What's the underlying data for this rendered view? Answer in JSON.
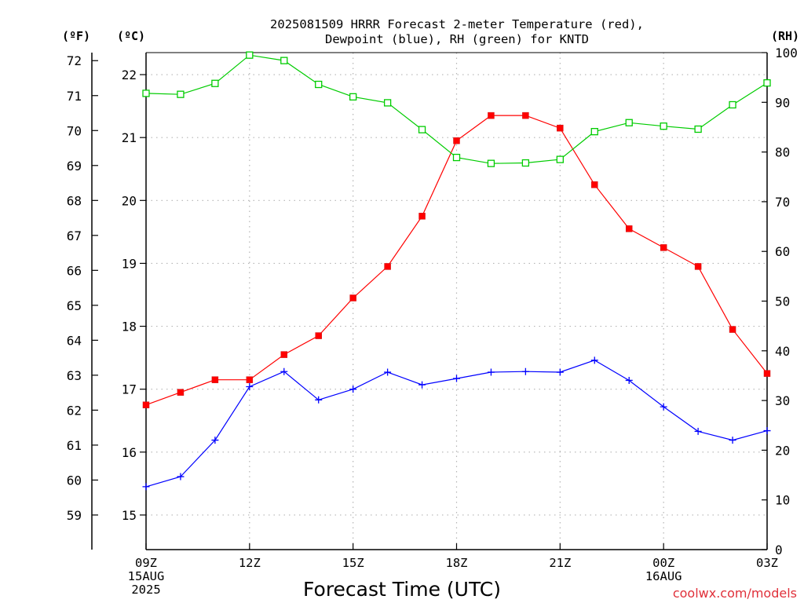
{
  "chart_data": {
    "type": "line",
    "title_line1": "2025081509 HRRR Forecast 2-meter Temperature (red),",
    "title_line2": "Dewpoint (blue), RH (green) for KNTD",
    "xlabel": "Forecast Time (UTC)",
    "credit": "coolwx.com/models",
    "unit_f": "(ºF)",
    "unit_c": "(ºC)",
    "unit_rh": "(RH)",
    "x_hours": [
      0,
      1,
      2,
      3,
      4,
      5,
      6,
      7,
      8,
      9,
      10,
      11,
      12,
      13,
      14,
      15,
      16,
      17,
      18
    ],
    "x_ticks": [
      {
        "hour": 0,
        "lines": [
          "09Z",
          "15AUG",
          "2025"
        ]
      },
      {
        "hour": 3,
        "lines": [
          "12Z"
        ]
      },
      {
        "hour": 6,
        "lines": [
          "15Z"
        ]
      },
      {
        "hour": 9,
        "lines": [
          "18Z"
        ]
      },
      {
        "hour": 12,
        "lines": [
          "21Z"
        ]
      },
      {
        "hour": 15,
        "lines": [
          "00Z",
          "16AUG"
        ]
      },
      {
        "hour": 18,
        "lines": [
          "03Z"
        ]
      }
    ],
    "xlim": [
      0,
      18
    ],
    "celsius_ticks": [
      15,
      16,
      17,
      18,
      19,
      20,
      21,
      22
    ],
    "fahrenheit_ticks": [
      59,
      60,
      61,
      62,
      63,
      64,
      65,
      66,
      67,
      68,
      69,
      70,
      71,
      72
    ],
    "rh_ticks": [
      0,
      10,
      20,
      30,
      40,
      50,
      60,
      70,
      80,
      90,
      100
    ],
    "ylim_c": [
      14.45,
      22.35
    ],
    "ylim_rh": [
      0,
      100
    ],
    "grid": true,
    "series": [
      {
        "name": "Temperature (red)",
        "axis": "celsius",
        "color": "#ff0000",
        "marker": "filled-square",
        "values": [
          16.75,
          16.95,
          17.15,
          17.15,
          17.55,
          17.85,
          18.45,
          18.95,
          19.75,
          20.95,
          21.35,
          21.35,
          21.15,
          20.25,
          19.55,
          19.25,
          18.95,
          17.95,
          17.25
        ]
      },
      {
        "name": "Dewpoint (blue)",
        "axis": "celsius",
        "color": "#0000ff",
        "marker": "plus",
        "values": [
          15.45,
          15.61,
          16.19,
          17.04,
          17.28,
          16.83,
          17.0,
          17.27,
          17.07,
          17.17,
          17.27,
          17.28,
          17.27,
          17.46,
          17.14,
          16.72,
          16.33,
          16.19,
          16.34
        ]
      },
      {
        "name": "RH (green)",
        "axis": "rh",
        "color": "#00cc00",
        "marker": "open-square",
        "values": [
          91.8,
          91.6,
          93.8,
          99.5,
          98.4,
          93.6,
          91.1,
          89.9,
          84.5,
          78.9,
          77.7,
          77.8,
          78.5,
          84.1,
          85.9,
          85.2,
          84.6,
          89.5,
          93.9
        ]
      }
    ]
  }
}
